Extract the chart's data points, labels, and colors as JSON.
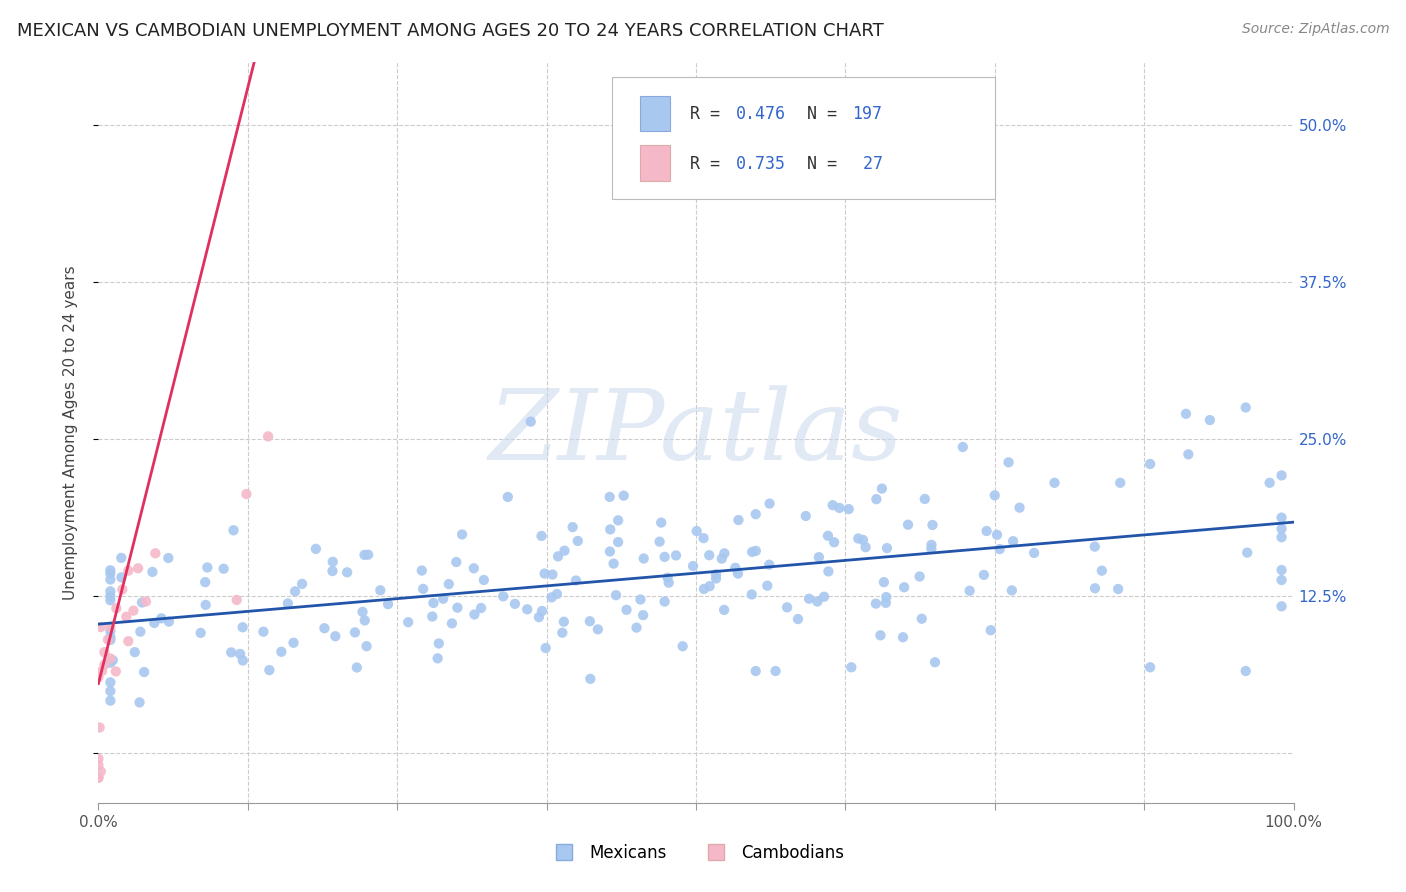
{
  "title": "MEXICAN VS CAMBODIAN UNEMPLOYMENT AMONG AGES 20 TO 24 YEARS CORRELATION CHART",
  "source": "Source: ZipAtlas.com",
  "ylabel": "Unemployment Among Ages 20 to 24 years",
  "xlim": [
    0,
    1
  ],
  "ylim": [
    -0.04,
    0.55
  ],
  "x_ticks": [
    0.0,
    0.125,
    0.25,
    0.375,
    0.5,
    0.625,
    0.75,
    0.875,
    1.0
  ],
  "x_tick_labels": [
    "0.0%",
    "",
    "",
    "",
    "",
    "",
    "",
    "",
    "100.0%"
  ],
  "y_ticks": [
    0.0,
    0.125,
    0.25,
    0.375,
    0.5
  ],
  "y_tick_labels_right": [
    "",
    "12.5%",
    "25.0%",
    "37.5%",
    "50.0%"
  ],
  "mexican_color": "#a8c8f0",
  "cambodian_color": "#f5b8c8",
  "mexican_line_color": "#2255aa",
  "cambodian_line_color": "#e03060",
  "R_mexican": 0.476,
  "N_mexican": 197,
  "R_cambodian": 0.735,
  "N_cambodian": 27,
  "watermark_text": "ZIPatlas",
  "background_color": "#ffffff",
  "grid_color": "#cccccc",
  "title_fontsize": 13,
  "source_fontsize": 10,
  "ylabel_fontsize": 11,
  "tick_fontsize": 11,
  "legend_value_color": "#3366cc",
  "legend_label_color": "#333333"
}
